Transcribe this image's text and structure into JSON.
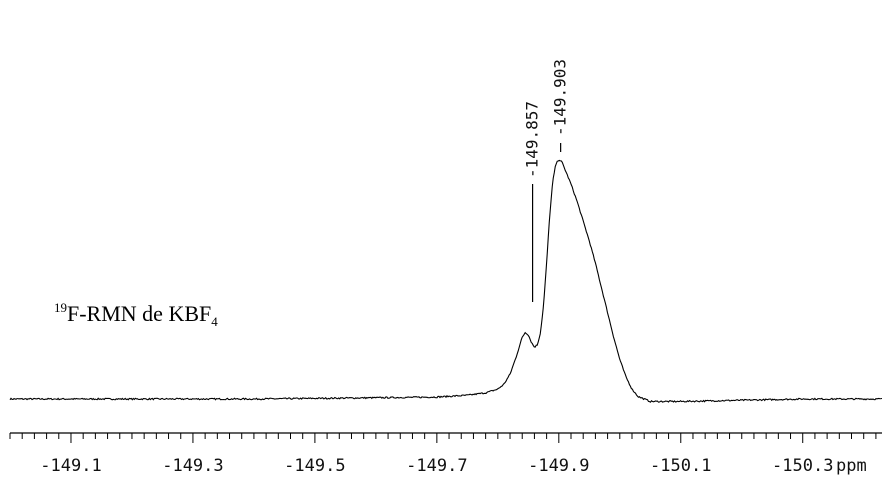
{
  "chart_data": {
    "type": "line",
    "title": "",
    "xlabel": "ppm",
    "ylabel": "",
    "xlim": [
      -149.0,
      -150.43
    ],
    "x_reversed": true,
    "xticks": [
      -149.1,
      -149.3,
      -149.5,
      -149.7,
      -149.9,
      -150.1,
      -150.3
    ],
    "tick_labels": [
      "-149.1",
      "-149.3",
      "-149.5",
      "-149.7",
      "-149.9",
      "-150.1",
      "-150.3"
    ],
    "minor_tick_step": 0.02,
    "baseline": 0.0,
    "ylim": [
      -0.08,
      1.0
    ],
    "grid": false,
    "series": [
      {
        "x": [
          -149.0,
          -149.2,
          -149.4,
          -149.6,
          -149.7,
          -149.75,
          -149.78,
          -149.8,
          -149.81,
          -149.82,
          -149.83,
          -149.84,
          -149.845,
          -149.85,
          -149.855,
          -149.86,
          -149.865,
          -149.87,
          -149.875,
          -149.88,
          -149.885,
          -149.89,
          -149.895,
          -149.9,
          -149.905,
          -149.91,
          -149.92,
          -149.93,
          -149.94,
          -149.95,
          -149.96,
          -149.97,
          -149.98,
          -149.99,
          -150.0,
          -150.01,
          -150.02,
          -150.03,
          -150.05,
          -150.1,
          -150.2,
          -150.3,
          -150.43
        ],
        "y": [
          0.0,
          0.0,
          0.0,
          0.005,
          0.008,
          0.015,
          0.025,
          0.04,
          0.06,
          0.1,
          0.17,
          0.25,
          0.27,
          0.26,
          0.23,
          0.21,
          0.22,
          0.27,
          0.38,
          0.55,
          0.74,
          0.88,
          0.95,
          0.97,
          0.96,
          0.93,
          0.87,
          0.8,
          0.72,
          0.64,
          0.55,
          0.45,
          0.35,
          0.25,
          0.16,
          0.09,
          0.04,
          0.01,
          -0.01,
          -0.01,
          -0.005,
          0.0,
          0.0
        ]
      }
    ],
    "peaks": [
      {
        "label": "-149.857",
        "x": -149.857
      },
      {
        "label": "-149.903",
        "x": -149.903
      }
    ],
    "annotation": {
      "sup": "19",
      "main": "F-RMN  de KBF",
      "sub": "4"
    }
  }
}
